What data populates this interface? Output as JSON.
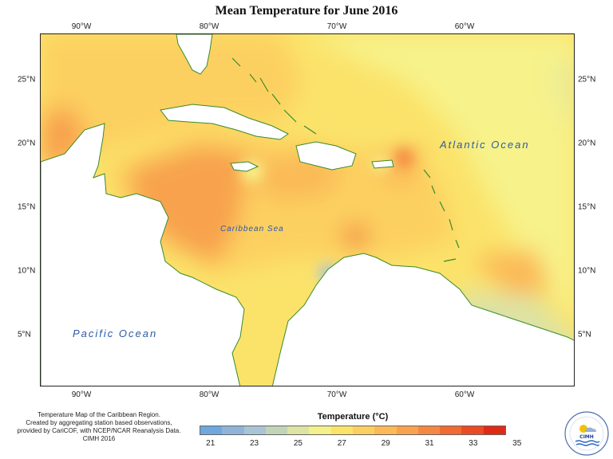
{
  "title": "Mean Temperature for June 2016",
  "longitude_ticks": [
    "90°W",
    "80°W",
    "70°W",
    "60°W"
  ],
  "latitude_ticks": [
    "25°N",
    "20°N",
    "15°N",
    "10°N",
    "5°N"
  ],
  "labels": {
    "atlantic": "Atlantic Ocean",
    "caribbean": "Caribbean Sea",
    "pacific": "Pacific Ocean"
  },
  "caption": [
    "Temperature Map of the Caribbean Region.",
    "Created by aggregating station based observations,",
    "provided by CariCOF, with NCEP/NCAR Reanalysis Data.",
    "CIMH 2016"
  ],
  "legend": {
    "title": "Temperature (°C)",
    "labels": [
      "21",
      "23",
      "25",
      "27",
      "29",
      "31",
      "33",
      "35"
    ],
    "colors": [
      "#6fa8dc",
      "#8fb4d8",
      "#a9c4d4",
      "#c2d4b8",
      "#dde3a4",
      "#f4f08a",
      "#fbe36a",
      "#fcd060",
      "#fbb957",
      "#f8a24e",
      "#f48842",
      "#f06a32",
      "#ea4a24",
      "#e02a18"
    ]
  },
  "logo_text": "CIMH",
  "colors": {
    "land": "#ffffff",
    "coast": "#3a8a2a",
    "ocean_label": "#2a5aa8"
  }
}
